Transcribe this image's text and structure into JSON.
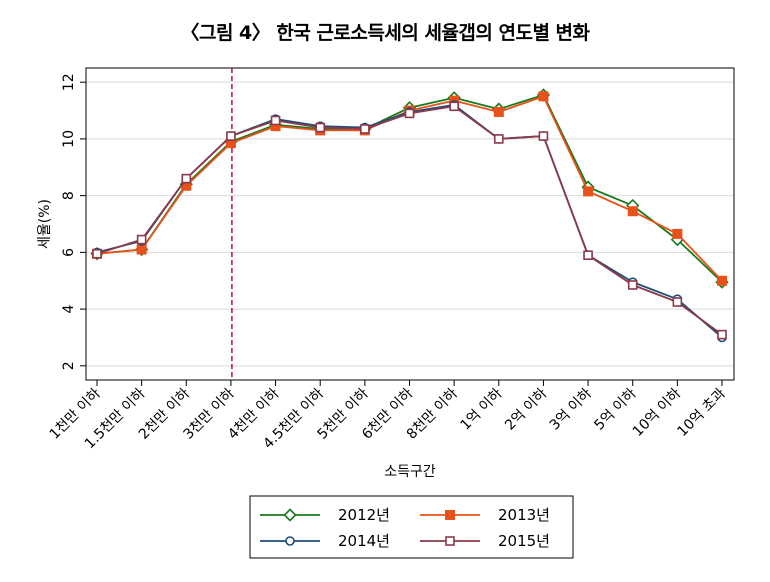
{
  "title": "〈그림 4〉 한국 근로소득세의 세율갭의 연도별 변화",
  "chart_data": {
    "type": "line",
    "title": "〈그림 4〉 한국 근로소득세의 세율갭의 연도별 변화",
    "xlabel": "소득구간",
    "ylabel": "세율(%)",
    "categories": [
      "1천만 이하",
      "1.5천만 이하",
      "2천만 이하",
      "3천만 이하",
      "4천만 이하",
      "4.5천만 이하",
      "5천만 이하",
      "6천만 이하",
      "8천만 이하",
      "1억 이하",
      "2억 이하",
      "3억 이하",
      "5억 이하",
      "10억 이하",
      "10억 초과"
    ],
    "ylim": [
      1.5,
      12.5
    ],
    "yticks": [
      2,
      4,
      6,
      8,
      10,
      12
    ],
    "grid": true,
    "legend_position": "bottom",
    "reference_line_after": "3천만 이하",
    "series": [
      {
        "name": "2012년",
        "color": "#1a7a1a",
        "marker": "diamond-open",
        "values": [
          5.95,
          6.1,
          8.4,
          9.9,
          10.5,
          10.35,
          10.35,
          11.1,
          11.45,
          11.05,
          11.55,
          8.3,
          7.65,
          6.45,
          4.95
        ]
      },
      {
        "name": "2013년",
        "color": "#e8521a",
        "marker": "square-filled",
        "values": [
          5.95,
          6.1,
          8.35,
          9.85,
          10.45,
          10.3,
          10.3,
          11.0,
          11.35,
          10.95,
          11.5,
          8.15,
          7.45,
          6.65,
          5.0
        ]
      },
      {
        "name": "2014년",
        "color": "#1f4e79",
        "marker": "circle-open",
        "values": [
          6.0,
          6.4,
          8.6,
          10.1,
          10.7,
          10.45,
          10.4,
          10.95,
          11.2,
          10.0,
          10.1,
          5.9,
          4.95,
          4.35,
          3.0
        ]
      },
      {
        "name": "2015년",
        "color": "#8b3a4a",
        "marker": "square-open",
        "values": [
          5.95,
          6.45,
          8.6,
          10.1,
          10.65,
          10.4,
          10.35,
          10.9,
          11.15,
          10.0,
          10.1,
          5.9,
          4.85,
          4.25,
          3.1
        ]
      }
    ]
  }
}
